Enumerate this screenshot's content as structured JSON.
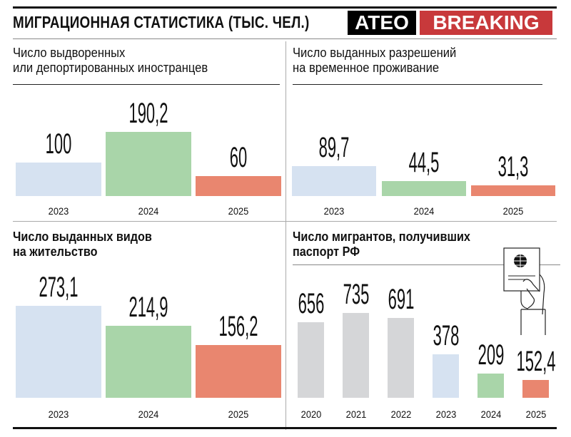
{
  "header": {
    "title": "МИГРАЦИОННАЯ СТАТИСТИКА (ТЫС. ЧЕЛ.)",
    "logo_left": "ATEO",
    "logo_right": "BREAKING"
  },
  "colors": {
    "2023": "#d6e2f1",
    "2024": "#a9d5a9",
    "2025": "#e9866f",
    "earlier": "#d5d6d8",
    "logo_red": "#c8393b"
  },
  "chart_data": [
    {
      "type": "bar",
      "title": "Число выдворенных или депортированных иностранцев",
      "title_lines": [
        "Число выдворенных",
        "или депортированных иностранцев"
      ],
      "categories": [
        "2023",
        "2024",
        "2025"
      ],
      "values": [
        100,
        190.2,
        60
      ],
      "labels": [
        "100",
        "190,2",
        "60"
      ]
    },
    {
      "type": "bar",
      "title": "Число выданных разрешений на временное проживание",
      "title_lines": [
        "Число выданных разрешений",
        "на временное проживание"
      ],
      "categories": [
        "2023",
        "2024",
        "2025"
      ],
      "values": [
        89.7,
        44.5,
        31.3
      ],
      "labels": [
        "89,7",
        "44,5",
        "31,3"
      ]
    },
    {
      "type": "bar",
      "title": "Число выданных видов на жительство",
      "title_lines": [
        "Число выданных видов",
        "на жительство"
      ],
      "categories": [
        "2023",
        "2024",
        "2025"
      ],
      "values": [
        273.1,
        214.9,
        156.2
      ],
      "labels": [
        "273,1",
        "214,9",
        "156,2"
      ]
    },
    {
      "type": "bar",
      "title": "Число мигрантов, получивших паспорт РФ",
      "title_lines": [
        "Число мигрантов, получивших",
        "паспорт РФ"
      ],
      "categories": [
        "2020",
        "2021",
        "2022",
        "2023",
        "2024",
        "2025"
      ],
      "values": [
        656,
        735,
        691,
        378,
        209,
        152.4
      ],
      "labels": [
        "656",
        "735",
        "691",
        "378",
        "209",
        "152,4"
      ],
      "icon": "passport-in-hand-icon"
    }
  ]
}
